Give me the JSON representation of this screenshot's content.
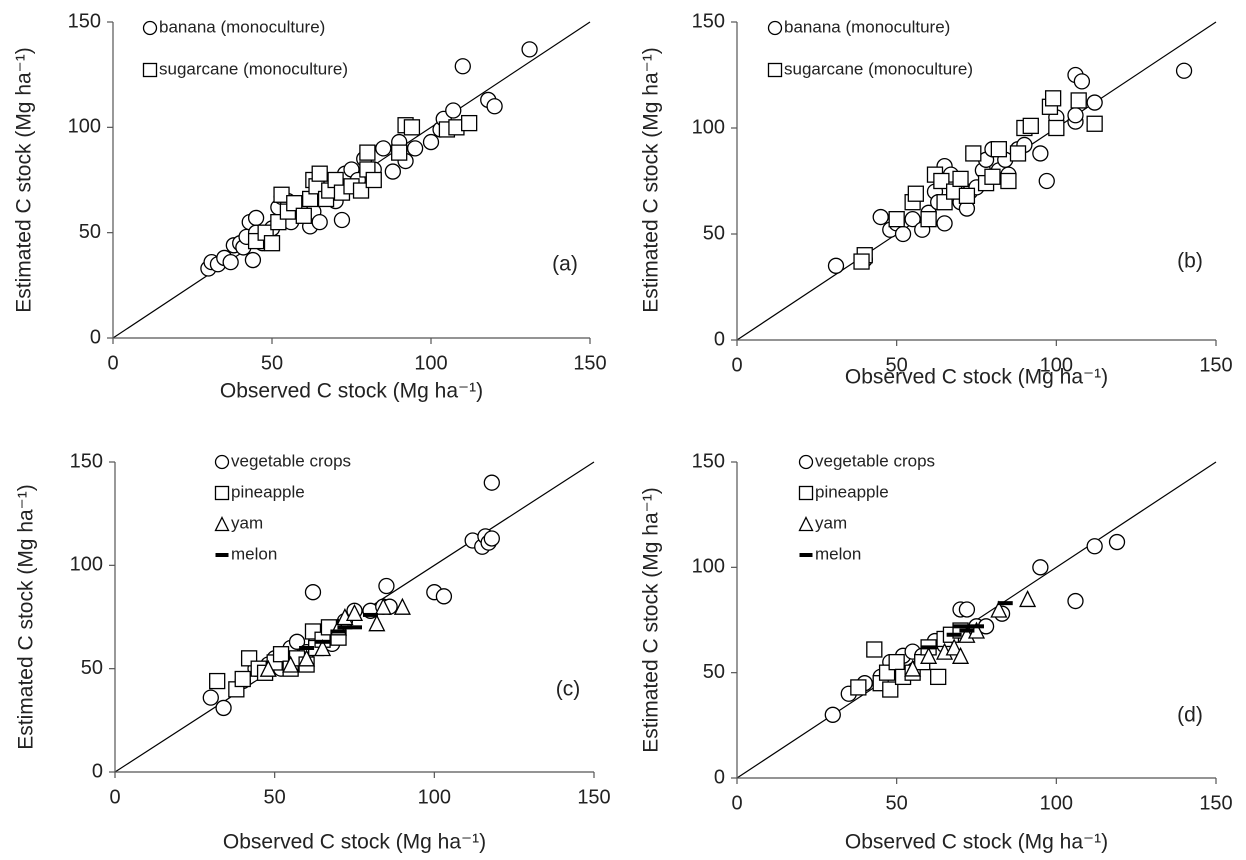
{
  "chart_data": [
    {
      "type": "scatter",
      "xlabel": "Observed C stock (Mg ha⁻¹)",
      "ylabel": "Estimated C stock (Mg ha⁻¹)",
      "panel_label": "(a)",
      "xlim": [
        0,
        150
      ],
      "ylim": [
        0,
        150
      ],
      "xticks": [
        0,
        50,
        100,
        150
      ],
      "yticks": [
        0,
        50,
        100,
        150
      ],
      "identity_line": true,
      "series": [
        {
          "name": "banana (monoculture)",
          "color": "#000000",
          "marker": "circle",
          "x": [
            30,
            31,
            33,
            35,
            37,
            38,
            40,
            41,
            42,
            43,
            44,
            45,
            45,
            47,
            48,
            50,
            52,
            53,
            55,
            56,
            58,
            60,
            62,
            63,
            65,
            66,
            68,
            70,
            72,
            73,
            75,
            77,
            79,
            82,
            85,
            88,
            90,
            92,
            95,
            100,
            103,
            104,
            107,
            110,
            118,
            120,
            131
          ],
          "values": [
            33,
            36,
            35,
            38,
            36,
            44,
            45,
            43,
            48,
            55,
            37,
            57,
            50,
            45,
            48,
            52,
            62,
            67,
            65,
            55,
            60,
            62,
            53,
            60,
            55,
            70,
            72,
            65,
            56,
            78,
            80,
            75,
            85,
            80,
            90,
            79,
            93,
            84,
            90,
            93,
            99,
            104,
            108,
            129,
            113,
            110,
            137
          ]
        },
        {
          "name": "sugarcane (monoculture)",
          "color": "#000000",
          "marker": "square",
          "x": [
            45,
            48,
            50,
            52,
            53,
            55,
            57,
            60,
            62,
            63,
            64,
            65,
            67,
            68,
            70,
            72,
            75,
            78,
            80,
            80,
            82,
            90,
            92,
            94,
            105,
            108,
            112
          ],
          "values": [
            46,
            50,
            45,
            55,
            68,
            60,
            64,
            58,
            66,
            75,
            72,
            78,
            66,
            70,
            75,
            69,
            72,
            70,
            80,
            88,
            75,
            88,
            101,
            100,
            99,
            100,
            102
          ]
        }
      ]
    },
    {
      "type": "scatter",
      "xlabel": "Observed C stock (Mg ha⁻¹)",
      "ylabel": "Estimated C stock (Mg ha⁻¹)",
      "panel_label": "(b)",
      "xlim": [
        0,
        150
      ],
      "ylim": [
        0,
        150
      ],
      "xticks": [
        0,
        50,
        100,
        150
      ],
      "yticks": [
        0,
        50,
        100,
        150
      ],
      "identity_line": true,
      "series": [
        {
          "name": "banana (monoculture)",
          "color": "#000000",
          "marker": "circle",
          "x": [
            31,
            40,
            45,
            48,
            50,
            52,
            55,
            58,
            60,
            62,
            63,
            65,
            65,
            67,
            70,
            72,
            73,
            75,
            77,
            78,
            80,
            82,
            84,
            85,
            88,
            90,
            95,
            97,
            100,
            106,
            106,
            106,
            108,
            112,
            140
          ],
          "values": [
            35,
            38,
            58,
            52,
            55,
            50,
            57,
            52,
            60,
            70,
            65,
            55,
            82,
            78,
            65,
            62,
            70,
            72,
            80,
            85,
            90,
            80,
            85,
            78,
            90,
            92,
            88,
            75,
            105,
            103,
            106,
            125,
            122,
            112,
            127
          ]
        },
        {
          "name": "sugarcane (monoculture)",
          "color": "#000000",
          "marker": "square",
          "x": [
            40,
            39,
            50,
            55,
            56,
            60,
            62,
            64,
            65,
            68,
            70,
            72,
            74,
            78,
            80,
            82,
            85,
            88,
            90,
            92,
            98,
            99,
            100,
            107,
            112
          ],
          "values": [
            40,
            37,
            57,
            65,
            69,
            57,
            78,
            75,
            65,
            70,
            76,
            68,
            88,
            74,
            77,
            90,
            75,
            88,
            100,
            101,
            110,
            114,
            100,
            113,
            102
          ]
        }
      ]
    },
    {
      "type": "scatter",
      "xlabel": "Observed C stock (Mg ha⁻¹)",
      "ylabel": "Estimated C stock (Mg ha⁻¹)",
      "panel_label": "(c)",
      "xlim": [
        0,
        150
      ],
      "ylim": [
        0,
        150
      ],
      "xticks": [
        0,
        50,
        100,
        150
      ],
      "yticks": [
        0,
        50,
        100,
        150
      ],
      "identity_line": true,
      "series": [
        {
          "name": "vegetable crops",
          "color": "#000000",
          "marker": "circle",
          "x": [
            30,
            34,
            40,
            44,
            48,
            50,
            52,
            55,
            57,
            60,
            62,
            63,
            66,
            68,
            70,
            72,
            75,
            80,
            84,
            85,
            86,
            100,
            103,
            112,
            115,
            116,
            117,
            118,
            118
          ],
          "values": [
            36,
            31,
            44,
            50,
            52,
            55,
            50,
            60,
            63,
            58,
            87,
            65,
            68,
            62,
            70,
            73,
            78,
            78,
            80,
            90,
            80,
            87,
            85,
            112,
            109,
            114,
            111,
            113,
            140
          ]
        },
        {
          "name": "pineapple",
          "color": "#000000",
          "marker": "square",
          "x": [
            32,
            38,
            40,
            42,
            45,
            47,
            50,
            52,
            55,
            57,
            60,
            62,
            63,
            65,
            67,
            70
          ],
          "values": [
            44,
            40,
            45,
            55,
            50,
            48,
            53,
            57,
            50,
            55,
            52,
            68,
            60,
            64,
            70,
            65
          ]
        },
        {
          "name": "yam",
          "color": "#000000",
          "marker": "triangle",
          "x": [
            48,
            55,
            60,
            65,
            70,
            72,
            75,
            82,
            84,
            90
          ],
          "values": [
            50,
            52,
            55,
            60,
            70,
            75,
            77,
            72,
            80,
            80
          ]
        },
        {
          "name": "melon",
          "color": "#000000",
          "marker": "dash",
          "x": [
            60,
            65,
            70,
            72,
            75,
            80
          ],
          "values": [
            60,
            63,
            68,
            70,
            70,
            76
          ]
        }
      ]
    },
    {
      "type": "scatter",
      "xlabel": "Observed C stock (Mg ha⁻¹)",
      "ylabel": "Estimated C stock (Mg ha⁻¹)",
      "panel_label": "(d)",
      "xlim": [
        0,
        150
      ],
      "ylim": [
        0,
        150
      ],
      "xticks": [
        0,
        50,
        100,
        150
      ],
      "yticks": [
        0,
        50,
        100,
        150
      ],
      "identity_line": true,
      "series": [
        {
          "name": "vegetable crops",
          "color": "#000000",
          "marker": "circle",
          "x": [
            30,
            35,
            40,
            45,
            48,
            50,
            52,
            55,
            58,
            60,
            62,
            65,
            70,
            72,
            75,
            78,
            83,
            95,
            106,
            112,
            119
          ],
          "values": [
            30,
            40,
            45,
            48,
            55,
            52,
            58,
            60,
            58,
            62,
            65,
            63,
            80,
            80,
            72,
            72,
            78,
            100,
            84,
            110,
            112
          ]
        },
        {
          "name": "pineapple",
          "color": "#000000",
          "marker": "square",
          "x": [
            38,
            43,
            45,
            47,
            48,
            50,
            52,
            55,
            58,
            60,
            63,
            65,
            67,
            70
          ],
          "values": [
            43,
            61,
            45,
            50,
            42,
            55,
            48,
            50,
            55,
            62,
            48,
            66,
            68,
            70
          ]
        },
        {
          "name": "yam",
          "color": "#000000",
          "marker": "triangle",
          "x": [
            55,
            60,
            65,
            68,
            70,
            72,
            75,
            82,
            91
          ],
          "values": [
            52,
            58,
            60,
            62,
            58,
            68,
            70,
            80,
            85
          ]
        },
        {
          "name": "melon",
          "color": "#000000",
          "marker": "dash",
          "x": [
            60,
            68,
            70,
            72,
            75,
            84
          ],
          "values": [
            62,
            68,
            72,
            70,
            72,
            83
          ]
        }
      ]
    }
  ]
}
